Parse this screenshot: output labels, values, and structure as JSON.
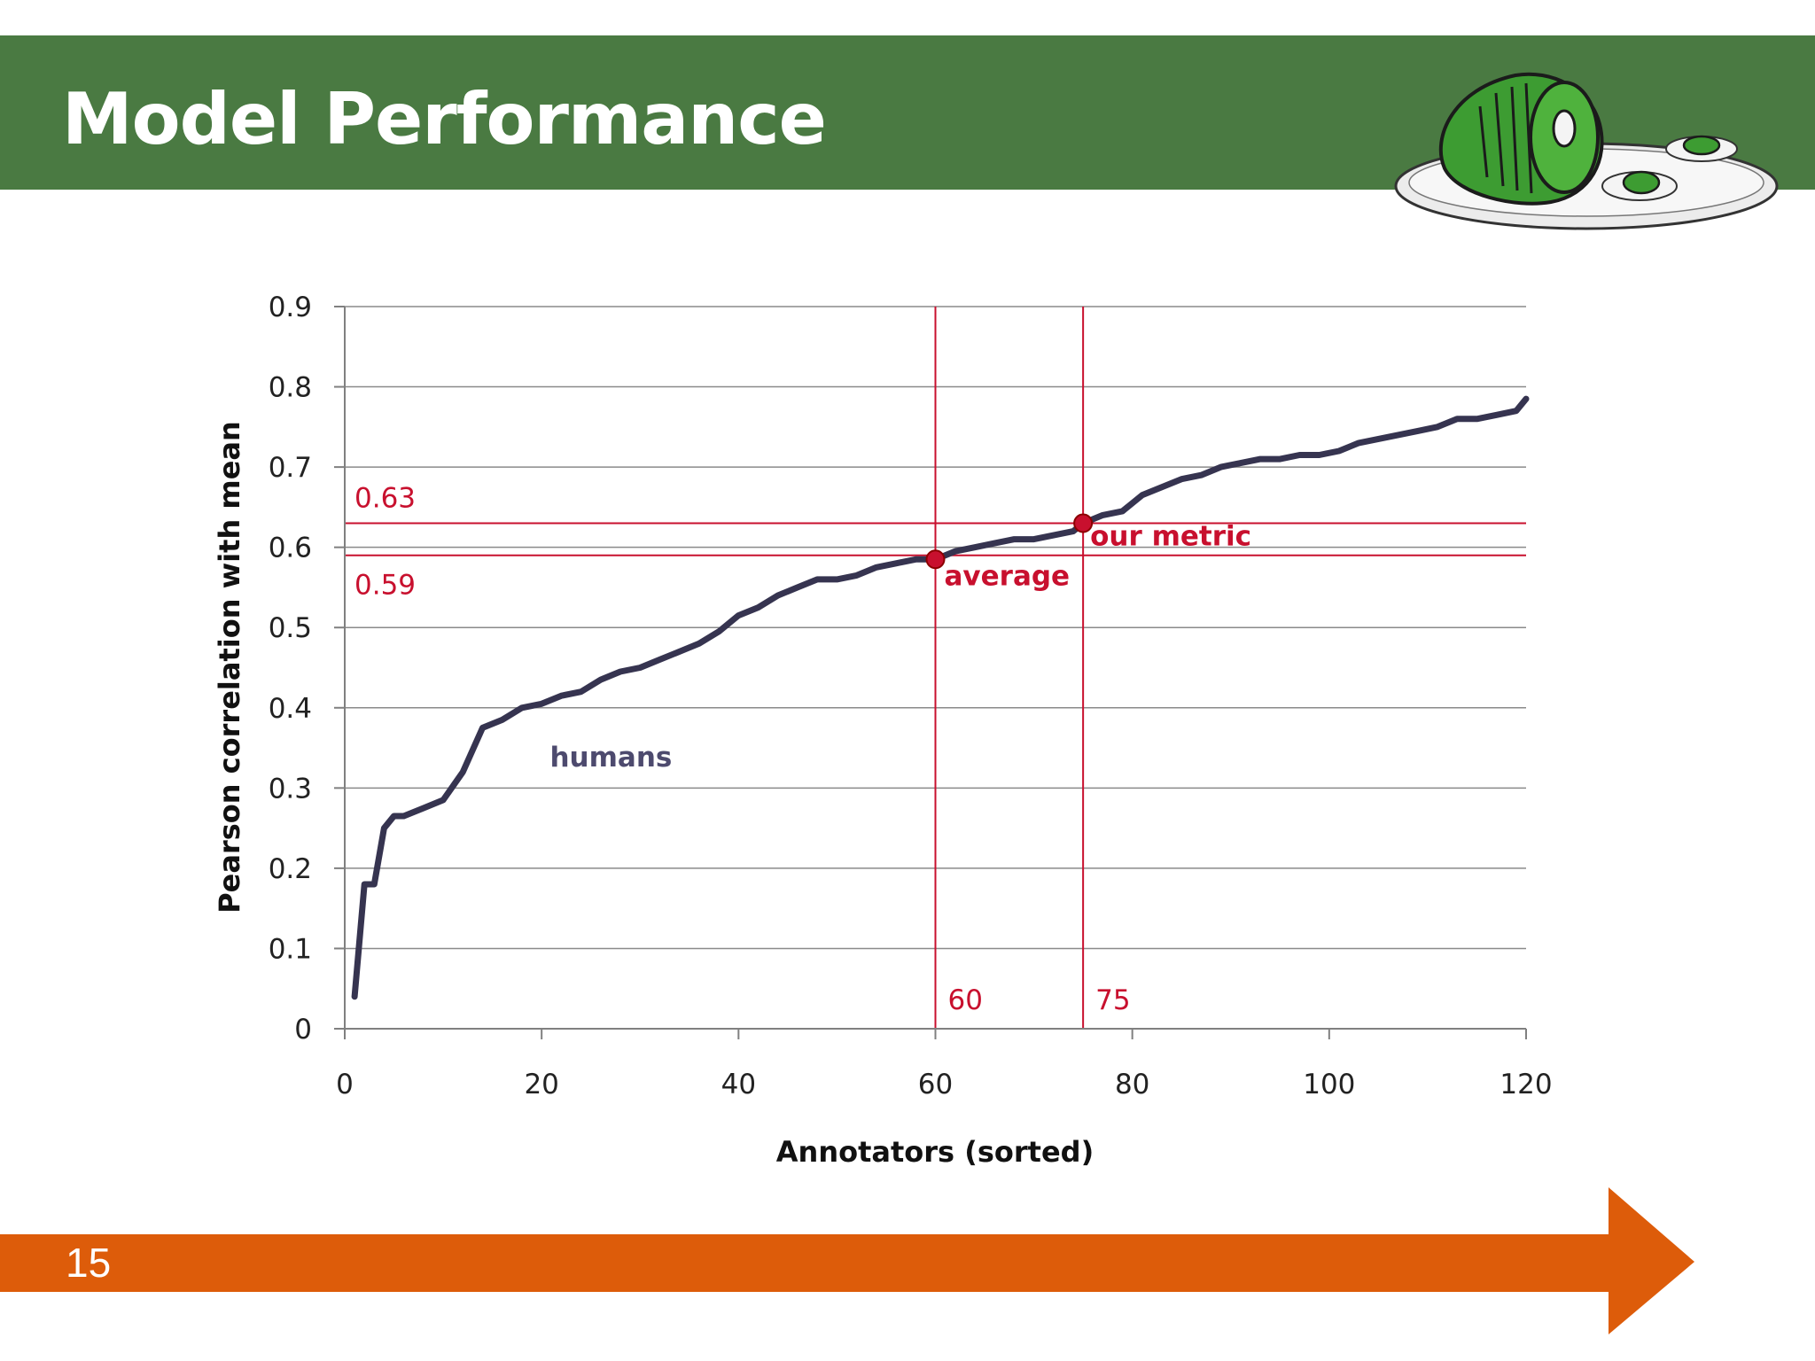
{
  "slide": {
    "title": "Model Performance",
    "number": "15",
    "colors": {
      "title_bar": "#4a7a42",
      "arrow": "#dd5c0a"
    },
    "illustration": "green-ham-on-plate"
  },
  "chart_data": {
    "type": "line",
    "title": "",
    "xlabel": "Annotators (sorted)",
    "ylabel": "Pearson correlation with mean",
    "xlim": [
      0,
      120
    ],
    "ylim": [
      0,
      0.9
    ],
    "x_ticks": [
      0,
      20,
      40,
      60,
      80,
      100,
      120
    ],
    "x_tick_labels": [
      "0",
      "20",
      "40",
      "60",
      "80",
      "100",
      "120"
    ],
    "y_ticks": [
      0,
      0.1,
      0.2,
      0.3,
      0.4,
      0.5,
      0.6,
      0.7,
      0.8,
      0.9
    ],
    "y_tick_labels": [
      "0",
      "0.1",
      "0.2",
      "0.3",
      "0.4",
      "0.5",
      "0.6",
      "0.7",
      "0.8",
      "0.9"
    ],
    "grid": "horizontal",
    "series": [
      {
        "name": "humans",
        "color": "#363450",
        "x": [
          1,
          2,
          3,
          4,
          5,
          6,
          8,
          10,
          12,
          14,
          16,
          18,
          20,
          22,
          24,
          26,
          28,
          30,
          32,
          34,
          36,
          38,
          40,
          42,
          44,
          46,
          48,
          50,
          52,
          54,
          56,
          58,
          60,
          62,
          64,
          66,
          68,
          70,
          72,
          74,
          75,
          77,
          79,
          81,
          83,
          85,
          87,
          89,
          91,
          93,
          95,
          97,
          99,
          101,
          103,
          105,
          107,
          109,
          111,
          113,
          115,
          117,
          119,
          120
        ],
        "y": [
          0.04,
          0.18,
          0.18,
          0.25,
          0.265,
          0.265,
          0.275,
          0.285,
          0.32,
          0.375,
          0.385,
          0.4,
          0.405,
          0.415,
          0.42,
          0.435,
          0.445,
          0.45,
          0.46,
          0.47,
          0.48,
          0.495,
          0.515,
          0.525,
          0.54,
          0.55,
          0.56,
          0.56,
          0.565,
          0.575,
          0.58,
          0.585,
          0.585,
          0.595,
          0.6,
          0.605,
          0.61,
          0.61,
          0.615,
          0.62,
          0.63,
          0.64,
          0.645,
          0.665,
          0.675,
          0.685,
          0.69,
          0.7,
          0.705,
          0.71,
          0.71,
          0.715,
          0.715,
          0.72,
          0.73,
          0.735,
          0.74,
          0.745,
          0.75,
          0.76,
          0.76,
          0.765,
          0.77,
          0.785
        ]
      }
    ],
    "reference_lines": {
      "horizontal": [
        {
          "y": 0.63,
          "label": "0.63",
          "color": "#c8102e"
        },
        {
          "y": 0.59,
          "label": "0.59",
          "color": "#c8102e"
        }
      ],
      "vertical": [
        {
          "x": 60,
          "label": "60",
          "color": "#c8102e"
        },
        {
          "x": 75,
          "label": "75",
          "color": "#c8102e"
        }
      ]
    },
    "points": [
      {
        "x": 60,
        "y": 0.585,
        "label": "average",
        "color": "#c8102e"
      },
      {
        "x": 75,
        "y": 0.63,
        "label": "our metric",
        "color": "#c8102e"
      }
    ],
    "annotations": [
      {
        "text": "humans",
        "x": 23,
        "y": 0.34
      }
    ]
  }
}
